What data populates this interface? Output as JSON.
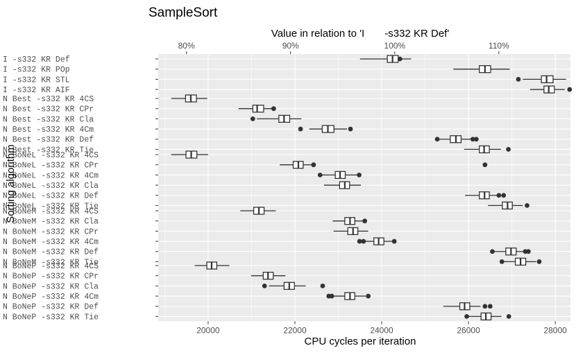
{
  "chart_data": {
    "type": "boxplot",
    "title": "SampleSort",
    "xlabel": "CPU cycles per iteration",
    "ylabel": "Sorting algorithm",
    "secondary_axis": {
      "title": "Value in relation to 'I       -s332 KR Def'",
      "ticks": [
        {
          "label": "80%",
          "value": 19500
        },
        {
          "label": "90%",
          "value": 21900
        },
        {
          "label": "100%",
          "value": 24300
        },
        {
          "label": "110%",
          "value": 26700
        }
      ]
    },
    "xlim": [
      18850,
      28350
    ],
    "x_ticks": [
      20000,
      22000,
      24000,
      26000,
      28000
    ],
    "x_tick_labels": [
      "20000",
      "22000",
      "24000",
      "26000",
      "28000"
    ],
    "groups": [
      {
        "rows": [
          {
            "label": "I       -s332 KR Def",
            "whisker_low": 23500,
            "q1": 24130,
            "median": 24250,
            "q3": 24380,
            "whisker_high": 24680,
            "outliers": [
              24420
            ]
          },
          {
            "label": "I       -s332 KR POp",
            "whisker_low": 25650,
            "q1": 26250,
            "median": 26380,
            "q3": 26510,
            "whisker_high": 26950,
            "outliers": []
          },
          {
            "label": "I       -s332 KR STL",
            "whisker_low": 27250,
            "q1": 27680,
            "median": 27800,
            "q3": 27950,
            "whisker_high": 28250,
            "outliers": [
              27150
            ]
          },
          {
            "label": "I       -s332 KR AIF",
            "whisker_low": 27420,
            "q1": 27740,
            "median": 27850,
            "q3": 27980,
            "whisker_high": 28220,
            "outliers": [
              28330
            ]
          }
        ]
      },
      {
        "rows": [
          {
            "label": "N Best  -s332 KR 4CS",
            "whisker_low": 19150,
            "q1": 19480,
            "median": 19600,
            "q3": 19730,
            "whisker_high": 19980,
            "outliers": []
          },
          {
            "label": "N Best  -s332 KR CPr",
            "whisker_low": 20700,
            "q1": 21030,
            "median": 21130,
            "q3": 21280,
            "whisker_high": 21550,
            "outliers": [
              21510
            ]
          },
          {
            "label": "N Best  -s332 KR Cla",
            "whisker_low": 21120,
            "q1": 21630,
            "median": 21750,
            "q3": 21880,
            "whisker_high": 22150,
            "outliers": [
              21030
            ]
          },
          {
            "label": "N Best  -s332 KR 4Cm",
            "whisker_low": 22330,
            "q1": 22630,
            "median": 22760,
            "q3": 22900,
            "whisker_high": 23200,
            "outliers": [
              22130,
              23280
            ]
          },
          {
            "label": "N Best  -s332 KR Def",
            "whisker_low": 25250,
            "q1": 25580,
            "median": 25710,
            "q3": 25830,
            "whisker_high": 26070,
            "outliers": [
              25280,
              26100,
              26180
            ]
          },
          {
            "label": "N Best  -s332 KR Tie",
            "whisker_low": 25900,
            "q1": 26250,
            "median": 26360,
            "q3": 26480,
            "whisker_high": 26750,
            "outliers": [
              26920
            ]
          }
        ]
      },
      {
        "rows": [
          {
            "label": "N BoNeL -s332 KR 4CS",
            "whisker_low": 19150,
            "q1": 19490,
            "median": 19610,
            "q3": 19740,
            "whisker_high": 20000,
            "outliers": []
          },
          {
            "label": "N BoNeL -s332 KR CPr",
            "whisker_low": 21650,
            "q1": 21960,
            "median": 22080,
            "q3": 22190,
            "whisker_high": 22400,
            "outliers": [
              22430,
              26380
            ]
          },
          {
            "label": "N BoNeL -s332 KR 4Cm",
            "whisker_low": 22540,
            "q1": 22930,
            "median": 23040,
            "q3": 23160,
            "whisker_high": 23470,
            "outliers": [
              22580,
              23480
            ]
          },
          {
            "label": "N BoNeL -s332 KR Cla",
            "whisker_low": 22670,
            "q1": 23030,
            "median": 23150,
            "q3": 23260,
            "whisker_high": 23520,
            "outliers": []
          },
          {
            "label": "N BoNeL -s332 KR Def",
            "whisker_low": 25920,
            "q1": 26250,
            "median": 26370,
            "q3": 26480,
            "whisker_high": 26740,
            "outliers": [
              26700,
              26810
            ]
          },
          {
            "label": "N BoNeL -s332 KR Tie",
            "whisker_low": 26450,
            "q1": 26780,
            "median": 26900,
            "q3": 27010,
            "whisker_high": 27250,
            "outliers": [
              27350
            ]
          }
        ]
      },
      {
        "rows": [
          {
            "label": "N BoNeM -s332 KR 4CS",
            "whisker_low": 20740,
            "q1": 21050,
            "median": 21170,
            "q3": 21290,
            "whisker_high": 21560,
            "outliers": []
          },
          {
            "label": "N BoNeM -s332 KR Cla",
            "whisker_low": 22870,
            "q1": 23150,
            "median": 23270,
            "q3": 23380,
            "whisker_high": 23650,
            "outliers": [
              23610
            ]
          },
          {
            "label": "N BoNeM -s332 KR CPr",
            "whisker_low": 22890,
            "q1": 23220,
            "median": 23340,
            "q3": 23450,
            "whisker_high": 23690,
            "outliers": []
          },
          {
            "label": "N BoNeM -s332 KR 4Cm",
            "whisker_low": 23530,
            "q1": 23820,
            "median": 23930,
            "q3": 24050,
            "whisker_high": 24270,
            "outliers": [
              23490,
              23580,
              24290
            ]
          },
          {
            "label": "N BoNeM -s332 KR Def",
            "whisker_low": 26550,
            "q1": 26860,
            "median": 26980,
            "q3": 27100,
            "whisker_high": 27360,
            "outliers": [
              26550,
              27310,
              27380
            ]
          },
          {
            "label": "N BoNeM -s332 KR Tie",
            "whisker_low": 26790,
            "q1": 27080,
            "median": 27200,
            "q3": 27320,
            "whisker_high": 27560,
            "outliers": [
              26770,
              27630
            ]
          }
        ]
      },
      {
        "rows": [
          {
            "label": "N BoNeP -s332 KR 4CS",
            "whisker_low": 19690,
            "q1": 19970,
            "median": 20080,
            "q3": 20200,
            "whisker_high": 20490,
            "outliers": []
          },
          {
            "label": "N BoNeP -s332 KR CPr",
            "whisker_low": 20990,
            "q1": 21270,
            "median": 21380,
            "q3": 21500,
            "whisker_high": 21780,
            "outliers": []
          },
          {
            "label": "N BoNeP -s332 KR Cla",
            "whisker_low": 21400,
            "q1": 21750,
            "median": 21870,
            "q3": 21990,
            "whisker_high": 22250,
            "outliers": [
              21300,
              22640
            ]
          },
          {
            "label": "N BoNeP -s332 KR 4Cm",
            "whisker_low": 22800,
            "q1": 23150,
            "median": 23270,
            "q3": 23380,
            "whisker_high": 23630,
            "outliers": [
              22780,
              22850,
              23690
            ]
          },
          {
            "label": "N BoNeP -s332 KR Def",
            "whisker_low": 25420,
            "q1": 25800,
            "median": 25910,
            "q3": 26030,
            "whisker_high": 26280,
            "outliers": [
              26380,
              26500
            ]
          },
          {
            "label": "N BoNeP -s332 KR Tie",
            "whisker_low": 25940,
            "q1": 26290,
            "median": 26400,
            "q3": 26520,
            "whisker_high": 26760,
            "outliers": [
              25960,
              26930
            ]
          }
        ]
      }
    ],
    "colors": {
      "panel": "#ebebeb",
      "grid": "#ffffff",
      "box_fill": "#ffffff",
      "line": "#333333",
      "outlier": "#333333"
    }
  }
}
